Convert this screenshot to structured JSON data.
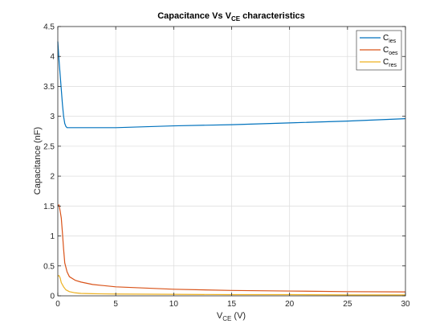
{
  "chart_data": {
    "type": "line",
    "title": {
      "main": "Capacitance Vs V",
      "sub": "CE",
      "rest": " characteristics"
    },
    "xlabel": {
      "main": "V",
      "sub": "CE",
      "rest": " (V)"
    },
    "ylabel": "Capacitance (nF)",
    "xlim": [
      0,
      30
    ],
    "ylim": [
      0,
      4.5
    ],
    "xticks": [
      0,
      5,
      10,
      15,
      20,
      25,
      30
    ],
    "xtick_labels": [
      "0",
      "5",
      "10",
      "15",
      "20",
      "25",
      "30"
    ],
    "yticks": [
      0,
      0.5,
      1,
      1.5,
      2,
      2.5,
      3,
      3.5,
      4,
      4.5
    ],
    "ytick_labels": [
      "0",
      "0.5",
      "1",
      "1.5",
      "2",
      "2.5",
      "3",
      "3.5",
      "4",
      "4.5"
    ],
    "grid": true,
    "legend_position": "top-right",
    "series": [
      {
        "name": "C",
        "name_sub": "ies",
        "color": "#0072BD",
        "x": [
          0,
          0.1,
          0.2,
          0.3,
          0.4,
          0.5,
          0.6,
          0.7,
          0.8,
          1,
          2,
          5,
          10,
          15,
          20,
          25,
          30
        ],
        "values": [
          4.25,
          3.95,
          3.7,
          3.45,
          3.2,
          3.0,
          2.88,
          2.83,
          2.81,
          2.81,
          2.81,
          2.81,
          2.84,
          2.86,
          2.89,
          2.92,
          2.96
        ]
      },
      {
        "name": "C",
        "name_sub": "oes",
        "color": "#D95319",
        "x": [
          0,
          0.1,
          0.2,
          0.3,
          0.4,
          0.5,
          0.6,
          0.8,
          1,
          1.5,
          2,
          3,
          5,
          10,
          15,
          20,
          25,
          30
        ],
        "values": [
          1.5,
          1.52,
          1.42,
          1.3,
          1.05,
          0.78,
          0.55,
          0.4,
          0.32,
          0.26,
          0.23,
          0.19,
          0.15,
          0.11,
          0.09,
          0.08,
          0.07,
          0.065
        ]
      },
      {
        "name": "C",
        "name_sub": "res",
        "color": "#EDB120",
        "x": [
          0,
          0.1,
          0.2,
          0.3,
          0.5,
          0.7,
          1,
          1.5,
          2,
          3,
          5,
          10,
          15,
          20,
          25,
          30
        ],
        "values": [
          0.33,
          0.34,
          0.3,
          0.22,
          0.15,
          0.1,
          0.07,
          0.05,
          0.04,
          0.035,
          0.03,
          0.025,
          0.02,
          0.02,
          0.015,
          0.015
        ]
      }
    ]
  }
}
